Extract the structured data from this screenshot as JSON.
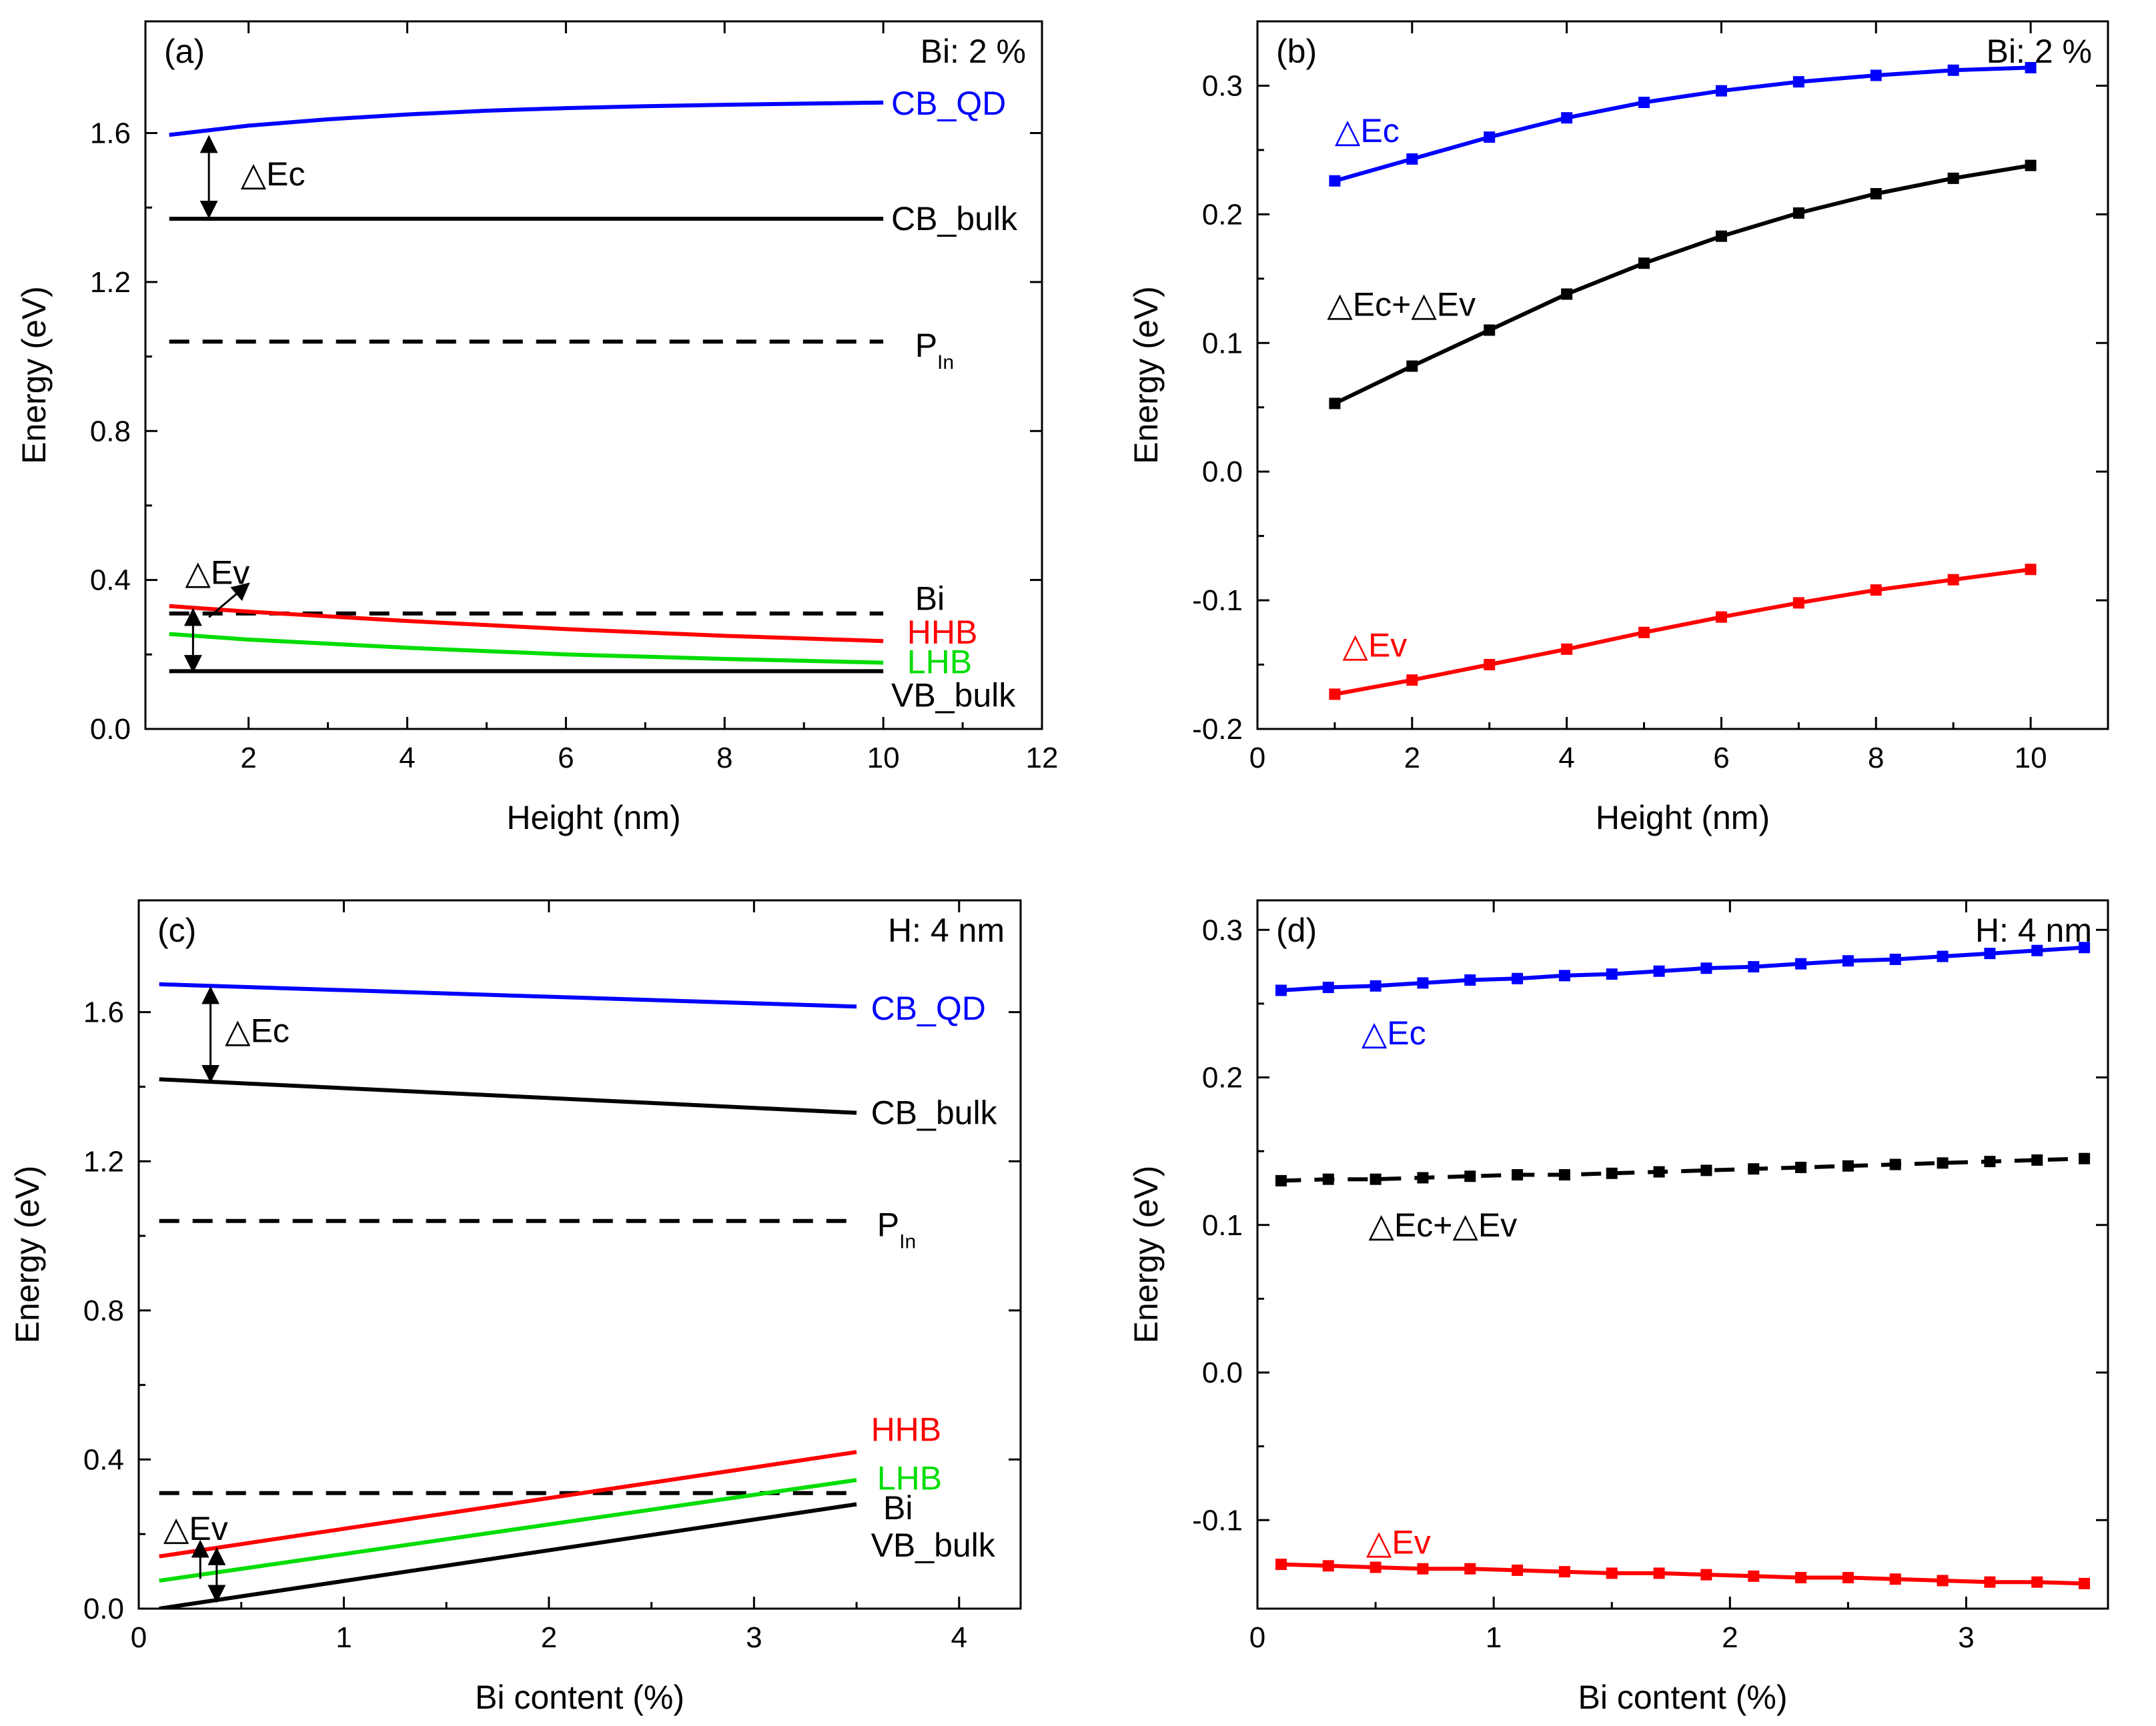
{
  "chart_data": [
    {
      "panel": "(a)",
      "type": "line",
      "corner_note": "Bi: 2 %",
      "xlabel": "Height (nm)",
      "ylabel": "Energy (eV)",
      "xlim": [
        0.7,
        12
      ],
      "ylim": [
        0,
        1.9
      ],
      "xticks": [
        2,
        4,
        6,
        8,
        10,
        12
      ],
      "yticks": [
        0.0,
        0.4,
        0.8,
        1.2,
        1.6
      ],
      "ytick_labels": [
        "0.0",
        "0.4",
        "0.8",
        "1.2",
        "1.6"
      ],
      "series": [
        {
          "name": "CB_QD",
          "color": "#0000ff",
          "dash": false,
          "markers": false,
          "x": [
            1,
            2,
            3,
            4,
            5,
            6,
            7,
            8,
            9,
            10
          ],
          "values": [
            1.595,
            1.62,
            1.637,
            1.65,
            1.66,
            1.667,
            1.672,
            1.676,
            1.679,
            1.682
          ]
        },
        {
          "name": "CB_bulk",
          "color": "#000000",
          "dash": false,
          "markers": false,
          "x": [
            1,
            10
          ],
          "values": [
            1.37,
            1.37
          ]
        },
        {
          "name": "P_In",
          "color": "#000000",
          "dash": true,
          "markers": false,
          "x": [
            1,
            10
          ],
          "values": [
            1.04,
            1.04
          ]
        },
        {
          "name": "Bi",
          "color": "#000000",
          "dash": true,
          "markers": false,
          "x": [
            1,
            10
          ],
          "values": [
            0.31,
            0.31
          ]
        },
        {
          "name": "HHB",
          "color": "#ff0000",
          "dash": false,
          "markers": false,
          "x": [
            1,
            2,
            4,
            6,
            8,
            10
          ],
          "values": [
            0.33,
            0.315,
            0.29,
            0.268,
            0.25,
            0.236
          ]
        },
        {
          "name": "LHB",
          "color": "#00dd00",
          "dash": false,
          "markers": false,
          "x": [
            1,
            2,
            4,
            6,
            8,
            10
          ],
          "values": [
            0.255,
            0.24,
            0.218,
            0.2,
            0.188,
            0.178
          ]
        },
        {
          "name": "VB_bulk",
          "color": "#000000",
          "dash": false,
          "markers": false,
          "x": [
            1,
            10
          ],
          "values": [
            0.155,
            0.155
          ]
        }
      ],
      "labels": [
        {
          "text": "CB_QD",
          "color": "#0000ff",
          "x": 10.1,
          "y": 1.68
        },
        {
          "text": "CB_bulk",
          "color": "#000000",
          "x": 10.1,
          "y": 1.37
        },
        {
          "text": "P",
          "sub": "In",
          "color": "#000000",
          "x": 10.4,
          "y": 1.03
        },
        {
          "text": "Bi",
          "color": "#000000",
          "x": 10.4,
          "y": 0.35
        },
        {
          "text": "HHB",
          "color": "#ff0000",
          "x": 10.3,
          "y": 0.26
        },
        {
          "text": "LHB",
          "color": "#00dd00",
          "x": 10.3,
          "y": 0.18
        },
        {
          "text": "VB_bulk",
          "color": "#000000",
          "x": 10.1,
          "y": 0.09
        },
        {
          "text": "△Ec",
          "color": "#000000",
          "x": 1.9,
          "y": 1.49
        },
        {
          "text": "△Ev",
          "color": "#000000",
          "x": 1.2,
          "y": 0.42
        }
      ],
      "arrows": [
        {
          "x1": 1.5,
          "y1": 1.59,
          "x2": 1.5,
          "y2": 1.375,
          "double": true
        },
        {
          "x1": 1.3,
          "y1": 0.32,
          "x2": 1.3,
          "y2": 0.155,
          "double": true
        },
        {
          "x1": 1.5,
          "y1": 0.3,
          "x2": 2.0,
          "y2": 0.39,
          "double": false
        }
      ]
    },
    {
      "panel": "(b)",
      "type": "line",
      "corner_note": "Bi: 2 %",
      "xlabel": "Height (nm)",
      "ylabel": "Energy (eV)",
      "xlim": [
        0,
        11
      ],
      "ylim": [
        -0.2,
        0.35
      ],
      "xticks": [
        0,
        2,
        4,
        6,
        8,
        10
      ],
      "yticks": [
        -0.2,
        -0.1,
        0.0,
        0.1,
        0.2,
        0.3
      ],
      "ytick_labels": [
        "-0.2",
        "-0.1",
        "0.0",
        "0.1",
        "0.2",
        "0.3"
      ],
      "series": [
        {
          "name": "△Ec",
          "color": "#0000ff",
          "dash": false,
          "markers": true,
          "x": [
            1,
            2,
            3,
            4,
            5,
            6,
            7,
            8,
            9,
            10
          ],
          "values": [
            0.226,
            0.243,
            0.26,
            0.275,
            0.287,
            0.296,
            0.303,
            0.308,
            0.312,
            0.314
          ]
        },
        {
          "name": "△Ec+△Ev",
          "color": "#000000",
          "dash": false,
          "markers": true,
          "x": [
            1,
            2,
            3,
            4,
            5,
            6,
            7,
            8,
            9,
            10
          ],
          "values": [
            0.053,
            0.082,
            0.11,
            0.138,
            0.162,
            0.183,
            0.201,
            0.216,
            0.228,
            0.238
          ]
        },
        {
          "name": "△Ev",
          "color": "#ff0000",
          "dash": false,
          "markers": true,
          "x": [
            1,
            2,
            3,
            4,
            5,
            6,
            7,
            8,
            9,
            10
          ],
          "values": [
            -0.173,
            -0.162,
            -0.15,
            -0.138,
            -0.125,
            -0.113,
            -0.102,
            -0.092,
            -0.084,
            -0.076
          ]
        }
      ],
      "labels": [
        {
          "text": "△Ec",
          "color": "#0000ff",
          "x": 1.0,
          "y": 0.265
        },
        {
          "text": "△Ec+△Ev",
          "color": "#000000",
          "x": 0.9,
          "y": 0.13
        },
        {
          "text": "△Ev",
          "color": "#ff0000",
          "x": 1.1,
          "y": -0.135
        }
      ],
      "arrows": []
    },
    {
      "panel": "(c)",
      "type": "line",
      "corner_note": "H: 4 nm",
      "xlabel": "Bi content (%)",
      "ylabel": "Energy (eV)",
      "xlim": [
        0,
        4.3
      ],
      "ylim": [
        0,
        1.9
      ],
      "xticks": [
        0,
        1,
        2,
        3,
        4
      ],
      "yticks": [
        0.0,
        0.4,
        0.8,
        1.2,
        1.6
      ],
      "ytick_labels": [
        "0.0",
        "0.4",
        "0.8",
        "1.2",
        "1.6"
      ],
      "series": [
        {
          "name": "CB_QD",
          "color": "#0000ff",
          "dash": false,
          "markers": false,
          "x": [
            0.1,
            3.5
          ],
          "values": [
            1.675,
            1.615
          ]
        },
        {
          "name": "CB_bulk",
          "color": "#000000",
          "dash": false,
          "markers": false,
          "x": [
            0.1,
            3.5
          ],
          "values": [
            1.42,
            1.33
          ]
        },
        {
          "name": "P_In",
          "color": "#000000",
          "dash": true,
          "markers": false,
          "x": [
            0.1,
            3.5
          ],
          "values": [
            1.04,
            1.04
          ]
        },
        {
          "name": "Bi",
          "color": "#000000",
          "dash": true,
          "markers": false,
          "x": [
            0.1,
            3.5
          ],
          "values": [
            0.31,
            0.31
          ]
        },
        {
          "name": "HHB",
          "color": "#ff0000",
          "dash": false,
          "markers": false,
          "x": [
            0.1,
            3.5
          ],
          "values": [
            0.14,
            0.42
          ]
        },
        {
          "name": "LHB",
          "color": "#00dd00",
          "dash": false,
          "markers": false,
          "x": [
            0.1,
            3.5
          ],
          "values": [
            0.075,
            0.345
          ]
        },
        {
          "name": "VB_bulk",
          "color": "#000000",
          "dash": false,
          "markers": false,
          "x": [
            0.1,
            3.5
          ],
          "values": [
            0.0,
            0.28
          ]
        }
      ],
      "labels": [
        {
          "text": "CB_QD",
          "color": "#0000ff",
          "x": 3.57,
          "y": 1.61
        },
        {
          "text": "CB_bulk",
          "color": "#000000",
          "x": 3.57,
          "y": 1.33
        },
        {
          "text": "P",
          "sub": "In",
          "color": "#000000",
          "x": 3.6,
          "y": 1.03
        },
        {
          "text": "HHB",
          "color": "#ff0000",
          "x": 3.57,
          "y": 0.48
        },
        {
          "text": "LHB",
          "color": "#00dd00",
          "x": 3.6,
          "y": 0.35
        },
        {
          "text": "Bi",
          "color": "#000000",
          "x": 3.63,
          "y": 0.27
        },
        {
          "text": "VB_bulk",
          "color": "#000000",
          "x": 3.57,
          "y": 0.17
        },
        {
          "text": "△Ec",
          "color": "#000000",
          "x": 0.42,
          "y": 1.55
        },
        {
          "text": "△Ev",
          "color": "#000000",
          "x": 0.12,
          "y": 0.215
        }
      ],
      "arrows": [
        {
          "x1": 0.35,
          "y1": 1.665,
          "x2": 0.35,
          "y2": 1.415,
          "double": true
        },
        {
          "x1": 0.38,
          "y1": 0.16,
          "x2": 0.38,
          "y2": 0.02,
          "double": true
        },
        {
          "x1": 0.3,
          "y1": 0.08,
          "x2": 0.3,
          "y2": 0.18,
          "double": false
        }
      ]
    },
    {
      "panel": "(d)",
      "type": "line",
      "corner_note": "H: 4 nm",
      "xlabel": "Bi content (%)",
      "ylabel": "Energy (eV)",
      "xlim": [
        0,
        3.6
      ],
      "ylim": [
        -0.16,
        0.32
      ],
      "xticks": [
        0,
        1,
        2,
        3
      ],
      "yticks": [
        -0.1,
        0.0,
        0.1,
        0.2,
        0.3
      ],
      "ytick_labels": [
        "-0.1",
        "0.0",
        "0.1",
        "0.2",
        "0.3"
      ],
      "series": [
        {
          "name": "△Ec",
          "color": "#0000ff",
          "dash": false,
          "markers": true,
          "x": [
            0.1,
            0.3,
            0.5,
            0.7,
            0.9,
            1.1,
            1.3,
            1.5,
            1.7,
            1.9,
            2.1,
            2.3,
            2.5,
            2.7,
            2.9,
            3.1,
            3.3,
            3.5
          ],
          "values": [
            0.259,
            0.261,
            0.262,
            0.264,
            0.266,
            0.267,
            0.269,
            0.27,
            0.272,
            0.274,
            0.275,
            0.277,
            0.279,
            0.28,
            0.282,
            0.284,
            0.286,
            0.288
          ]
        },
        {
          "name": "△Ec+△Ev",
          "color": "#000000",
          "dash": true,
          "markers": true,
          "x": [
            0.1,
            0.3,
            0.5,
            0.7,
            0.9,
            1.1,
            1.3,
            1.5,
            1.7,
            1.9,
            2.1,
            2.3,
            2.5,
            2.7,
            2.9,
            3.1,
            3.3,
            3.5
          ],
          "values": [
            0.13,
            0.131,
            0.131,
            0.132,
            0.133,
            0.134,
            0.134,
            0.135,
            0.136,
            0.137,
            0.138,
            0.139,
            0.14,
            0.141,
            0.142,
            0.143,
            0.144,
            0.145
          ]
        },
        {
          "name": "△Ev",
          "color": "#ff0000",
          "dash": false,
          "markers": true,
          "x": [
            0.1,
            0.3,
            0.5,
            0.7,
            0.9,
            1.1,
            1.3,
            1.5,
            1.7,
            1.9,
            2.1,
            2.3,
            2.5,
            2.7,
            2.9,
            3.1,
            3.3,
            3.5
          ],
          "values": [
            -0.13,
            -0.131,
            -0.132,
            -0.133,
            -0.133,
            -0.134,
            -0.135,
            -0.136,
            -0.136,
            -0.137,
            -0.138,
            -0.139,
            -0.139,
            -0.14,
            -0.141,
            -0.142,
            -0.142,
            -0.143
          ]
        }
      ],
      "labels": [
        {
          "text": "△Ec",
          "color": "#0000ff",
          "x": 0.44,
          "y": 0.23
        },
        {
          "text": "△Ec+△Ev",
          "color": "#000000",
          "x": 0.47,
          "y": 0.1
        },
        {
          "text": "△Ev",
          "color": "#ff0000",
          "x": 0.46,
          "y": -0.115
        }
      ],
      "arrows": []
    }
  ]
}
